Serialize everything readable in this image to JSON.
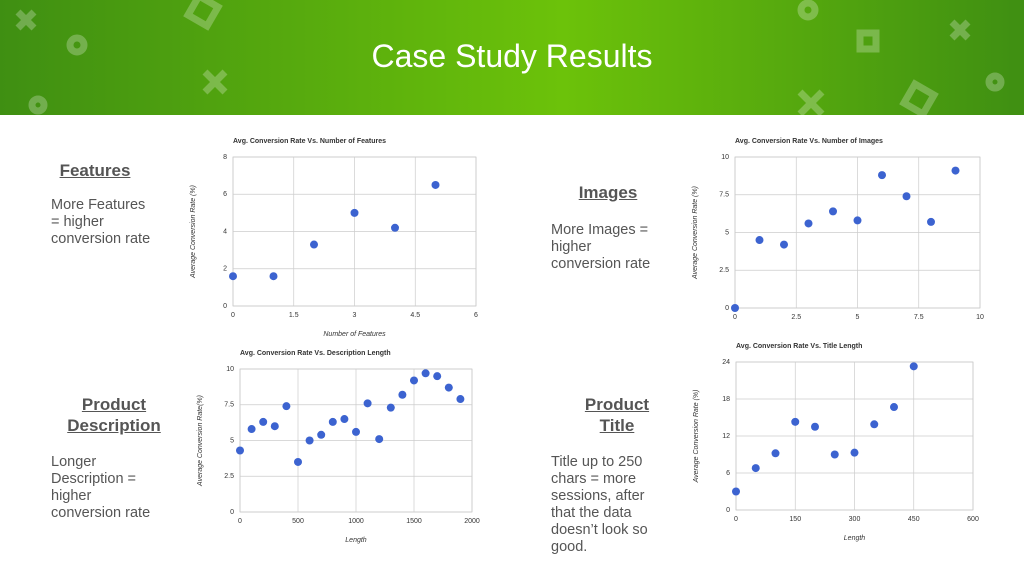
{
  "title": "Case Study Results",
  "sections": [
    {
      "heading": "Features",
      "body": "More Features = higher conversion rate"
    },
    {
      "heading": "Images",
      "body": "More Images = higher conversion rate"
    },
    {
      "heading": "Product Description",
      "body": "Longer Description = higher conversion rate"
    },
    {
      "heading": "Product Title",
      "body": "Title up to 250 chars = more sessions, after that the data doesn’t look so good."
    }
  ],
  "chart_data": [
    {
      "type": "scatter",
      "title": "Avg. Conversion Rate Vs. Number of Features",
      "x_label": "Number of Features",
      "y_label": "Average Conversion Rate (%)",
      "x": [
        0,
        1,
        2,
        3,
        4,
        5
      ],
      "values": [
        1.6,
        1.6,
        3.3,
        5.0,
        4.2,
        6.5
      ],
      "color": "#3c63d0",
      "xlim": [
        0,
        6
      ],
      "xticks": [
        0,
        1.5,
        3,
        4.5,
        6
      ],
      "ylim": [
        0,
        8
      ],
      "yticks": [
        0,
        2,
        4,
        6,
        8
      ],
      "grid": true
    },
    {
      "type": "scatter",
      "title": "Avg. Conversion Rate Vs. Number of Images",
      "y_label": "Average Conversion Rate (%)",
      "x": [
        0,
        1,
        2,
        3,
        4,
        5,
        6,
        7,
        8,
        9
      ],
      "values": [
        0,
        4.5,
        4.2,
        5.6,
        6.4,
        5.8,
        8.8,
        7.4,
        5.7,
        9.1
      ],
      "color": "#3c63d0",
      "xlim": [
        0,
        10
      ],
      "xticks": [
        0,
        2.5,
        5,
        7.5,
        10
      ],
      "ylim": [
        0,
        10
      ],
      "yticks": [
        0,
        2.5,
        5,
        7.5,
        10
      ],
      "grid": true
    },
    {
      "type": "scatter",
      "title": "Avg. Conversion Rate Vs. Description Length",
      "x_label": "Length",
      "y_label": "Average Conversion Rate(%)",
      "x": [
        0,
        100,
        200,
        300,
        400,
        500,
        600,
        700,
        800,
        900,
        1000,
        1100,
        1200,
        1300,
        1400,
        1500,
        1600,
        1700,
        1800,
        1900
      ],
      "values": [
        4.3,
        5.8,
        6.3,
        6.0,
        7.4,
        3.5,
        5.0,
        5.4,
        6.3,
        6.5,
        5.6,
        7.6,
        5.1,
        7.3,
        8.2,
        9.2,
        9.7,
        9.5,
        8.7,
        7.9
      ],
      "color": "#3c63d0",
      "xlim": [
        0,
        2000
      ],
      "xticks": [
        0,
        500,
        1000,
        1500,
        2000
      ],
      "ylim": [
        0,
        10
      ],
      "yticks": [
        0,
        2.5,
        5,
        7.5,
        10
      ],
      "grid": true
    },
    {
      "type": "scatter",
      "title": "Avg. Conversion Rate Vs. Title Length",
      "x_label": "Length",
      "y_label": "Average Conversion Rate (%)",
      "x": [
        0,
        50,
        100,
        150,
        200,
        250,
        300,
        350,
        400,
        450
      ],
      "values": [
        3,
        6.8,
        9.2,
        14.3,
        13.5,
        9.0,
        9.3,
        13.9,
        16.7,
        23.3
      ],
      "color": "#3c63d0",
      "xlim": [
        0,
        600
      ],
      "xticks": [
        0,
        150,
        300,
        450,
        600
      ],
      "ylim": [
        0,
        24
      ],
      "yticks": [
        0,
        6,
        12,
        18,
        24
      ],
      "grid": true
    }
  ]
}
